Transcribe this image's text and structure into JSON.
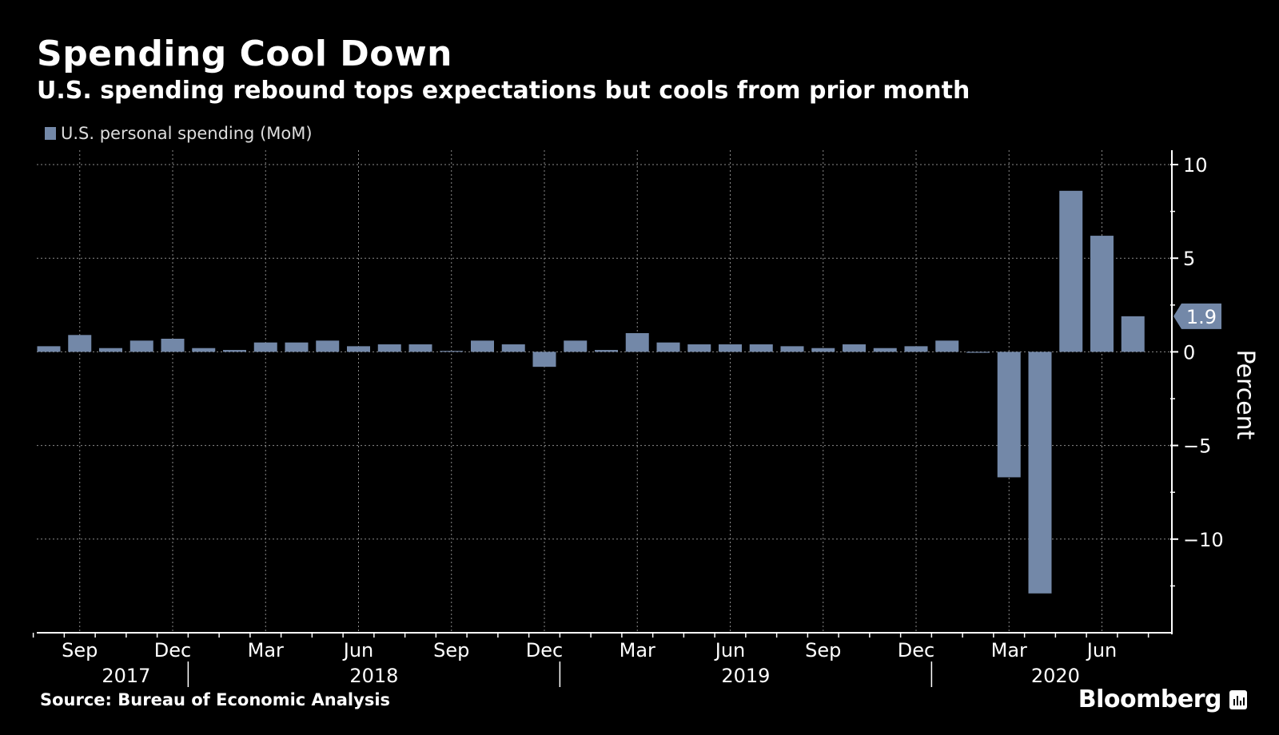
{
  "chart_data": {
    "type": "bar",
    "title": "Spending Cool Down",
    "subtitle": "U.S. spending rebound tops expectations but cools from prior month",
    "ylabel": "Percent",
    "ylim": [
      -15,
      10
    ],
    "yticks": [
      10,
      5,
      0,
      -5,
      -10
    ],
    "grid": true,
    "legend_position": "top-left",
    "series": [
      {
        "name": "U.S. personal spending (MoM)",
        "color": "#7388a8",
        "categories": [
          "Aug 2017",
          "Sep 2017",
          "Oct 2017",
          "Nov 2017",
          "Dec 2017",
          "Jan 2018",
          "Feb 2018",
          "Mar 2018",
          "Apr 2018",
          "May 2018",
          "Jun 2018",
          "Jul 2018",
          "Aug 2018",
          "Sep 2018",
          "Oct 2018",
          "Nov 2018",
          "Dec 2018",
          "Jan 2019",
          "Feb 2019",
          "Mar 2019",
          "Apr 2019",
          "May 2019",
          "Jun 2019",
          "Jul 2019",
          "Aug 2019",
          "Sep 2019",
          "Oct 2019",
          "Nov 2019",
          "Dec 2019",
          "Jan 2020",
          "Feb 2020",
          "Mar 2020",
          "Apr 2020",
          "May 2020",
          "Jun 2020",
          "Jul 2020"
        ],
        "values": [
          0.3,
          0.9,
          0.2,
          0.6,
          0.7,
          0.2,
          0.1,
          0.5,
          0.5,
          0.6,
          0.3,
          0.4,
          0.4,
          0.05,
          0.6,
          0.4,
          -0.8,
          0.6,
          0.1,
          1.0,
          0.5,
          0.4,
          0.4,
          0.4,
          0.3,
          0.2,
          0.4,
          0.2,
          0.3,
          0.6,
          -0.05,
          -6.7,
          -12.9,
          8.6,
          6.2,
          1.9
        ]
      }
    ],
    "last_value_label": "1.9",
    "x_month_labels": [
      "Sep",
      "Dec",
      "Mar",
      "Jun",
      "Sep",
      "Dec",
      "Mar",
      "Jun",
      "Sep",
      "Dec",
      "Mar",
      "Jun"
    ],
    "x_year_labels": [
      "2017",
      "2018",
      "2019",
      "2020"
    ]
  },
  "source": "Source: Bureau of Economic Analysis",
  "brand": "Bloomberg",
  "brand_icon": "bar-chart-icon",
  "colors": {
    "background": "#000000",
    "bar": "#7388a8",
    "text": "#ffffff",
    "grid": "#8a8a8a"
  }
}
